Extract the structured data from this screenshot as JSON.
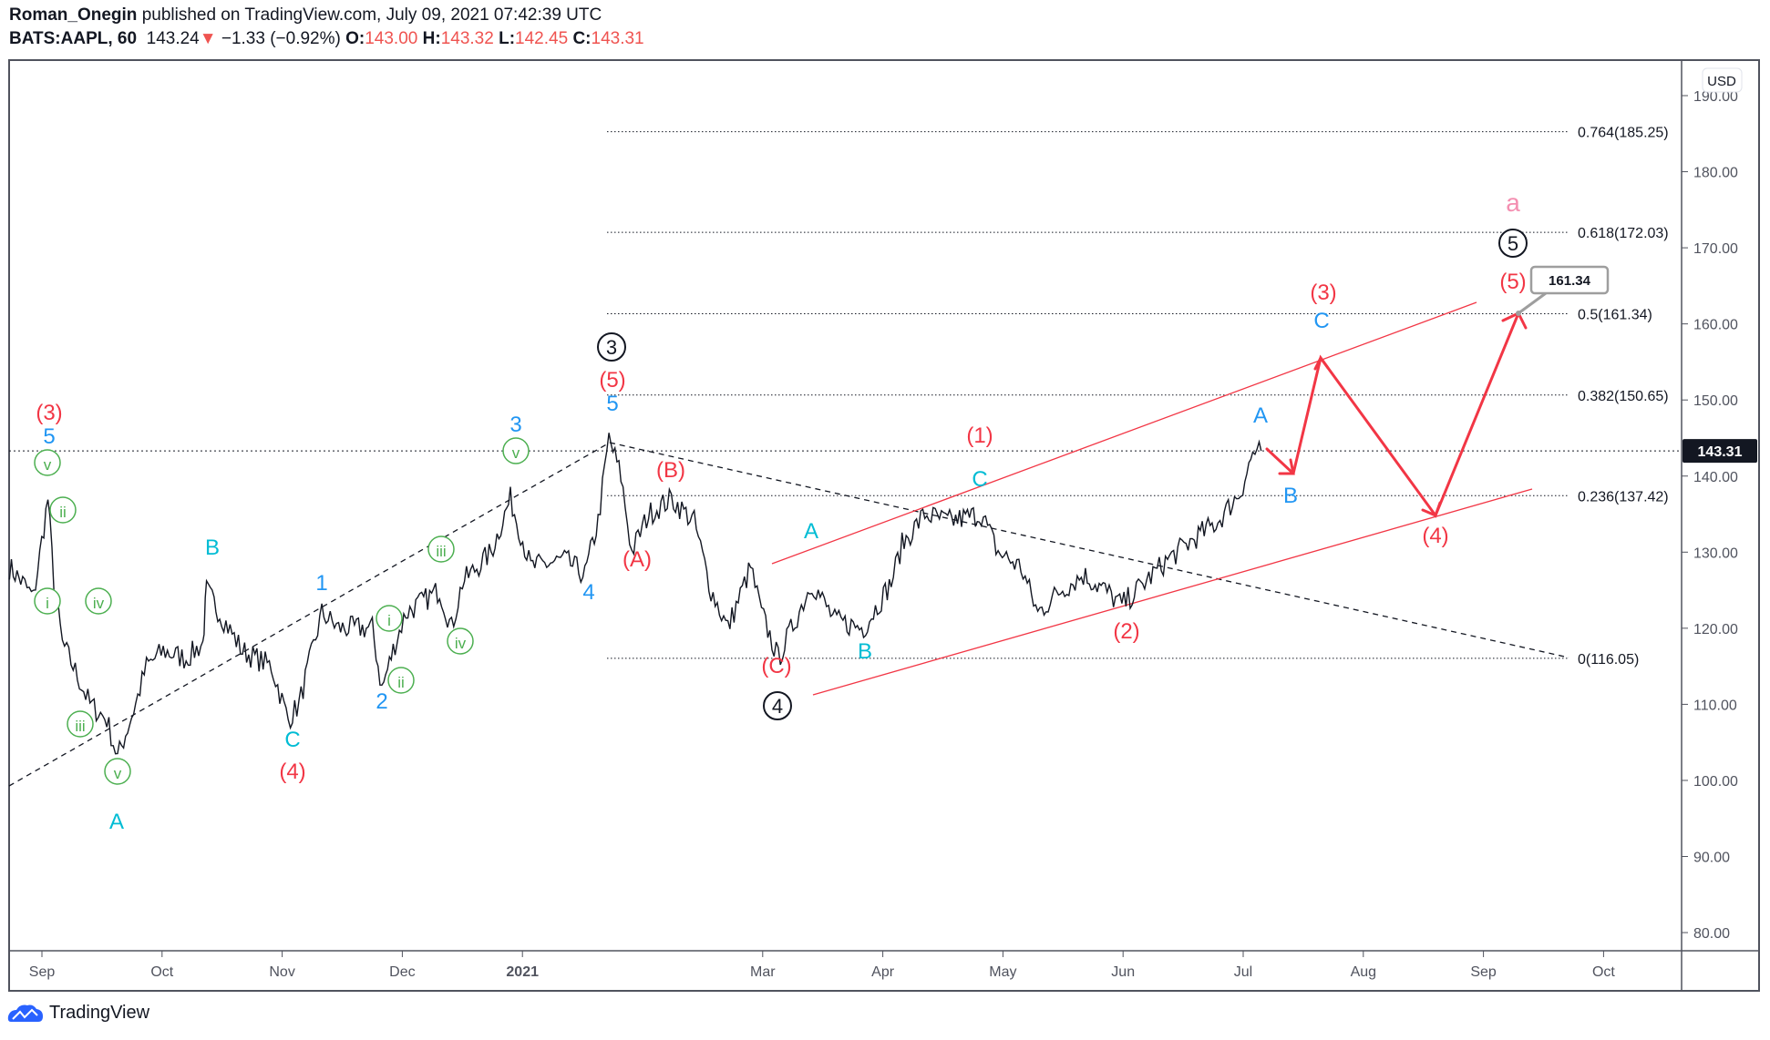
{
  "header": {
    "author": "Roman_Onegin",
    "published": "published on TradingView.com, July 09, 2021 07:42:39 UTC",
    "symbol": "BATS:AAPL, 60",
    "last": "143.24",
    "change": "−1.33 (−0.92%)",
    "o_label": "O:",
    "o": "143.00",
    "h_label": "H:",
    "h": "143.32",
    "l_label": "L:",
    "l": "142.45",
    "c_label": "C:",
    "c": "143.31"
  },
  "footer": {
    "brand": "TradingView"
  },
  "colors": {
    "red": "#f23645",
    "blue": "#2196f3",
    "cyan": "#00bcd4",
    "green": "#4caf50",
    "black": "#131722",
    "pink": "#f48fb1"
  },
  "chart_data": {
    "type": "line",
    "title": "BATS:AAPL, 60",
    "currency": "USD",
    "x_ticks": [
      "Sep",
      "Oct",
      "Nov",
      "Dec",
      "2021",
      "Mar",
      "Apr",
      "May",
      "Jun",
      "Jul",
      "Aug",
      "Sep",
      "Oct"
    ],
    "x_tick_months": [
      0,
      1,
      2,
      3,
      4,
      6,
      7,
      8,
      9,
      10,
      11,
      12,
      13
    ],
    "y_ticks": [
      "190.00",
      "180.00",
      "170.00",
      "160.00",
      "150.00",
      "140.00",
      "130.00",
      "120.00",
      "110.00",
      "100.00",
      "90.00",
      "80.00"
    ],
    "ylim": [
      80,
      190
    ],
    "last_price": 143.31,
    "last_price_label": "143.31",
    "price_path": [
      [
        -0.27,
        128
      ],
      [
        -0.16,
        126
      ],
      [
        -0.07,
        124
      ],
      [
        0.05,
        137
      ],
      [
        0.1,
        126
      ],
      [
        0.17,
        118
      ],
      [
        0.26,
        115
      ],
      [
        0.4,
        110
      ],
      [
        0.54,
        108
      ],
      [
        0.63,
        103
      ],
      [
        0.78,
        110
      ],
      [
        0.87,
        115
      ],
      [
        1.01,
        117
      ],
      [
        1.2,
        116
      ],
      [
        1.34,
        118
      ],
      [
        1.37,
        125
      ],
      [
        1.48,
        122
      ],
      [
        1.67,
        117
      ],
      [
        1.91,
        115
      ],
      [
        2.05,
        108
      ],
      [
        2.14,
        110
      ],
      [
        2.33,
        122
      ],
      [
        2.47,
        120
      ],
      [
        2.75,
        120
      ],
      [
        2.83,
        112
      ],
      [
        2.94,
        118
      ],
      [
        3.03,
        122
      ],
      [
        3.31,
        125
      ],
      [
        3.41,
        120
      ],
      [
        3.5,
        126
      ],
      [
        3.74,
        130
      ],
      [
        3.9,
        137
      ],
      [
        4.07,
        128
      ],
      [
        4.35,
        129
      ],
      [
        4.52,
        127
      ],
      [
        4.63,
        134
      ],
      [
        4.72,
        145
      ],
      [
        4.82,
        140
      ],
      [
        4.91,
        130
      ],
      [
        5.05,
        135
      ],
      [
        5.24,
        137
      ],
      [
        5.43,
        134
      ],
      [
        5.57,
        125
      ],
      [
        5.71,
        120
      ],
      [
        5.9,
        128
      ],
      [
        5.99,
        122
      ],
      [
        6.13,
        116
      ],
      [
        6.27,
        121
      ],
      [
        6.41,
        126
      ],
      [
        6.6,
        121
      ],
      [
        6.84,
        120
      ],
      [
        7.07,
        126
      ],
      [
        7.16,
        131
      ],
      [
        7.35,
        135
      ],
      [
        7.54,
        134
      ],
      [
        7.82,
        135
      ],
      [
        7.96,
        130
      ],
      [
        8.15,
        128
      ],
      [
        8.29,
        122
      ],
      [
        8.48,
        125
      ],
      [
        8.67,
        127
      ],
      [
        8.85,
        125
      ],
      [
        8.99,
        123
      ],
      [
        9.18,
        126
      ],
      [
        9.37,
        129
      ],
      [
        9.61,
        132
      ],
      [
        9.79,
        134
      ],
      [
        9.98,
        138
      ],
      [
        10.08,
        143
      ],
      [
        10.15,
        143.3
      ]
    ],
    "fib_levels": [
      {
        "ratio": 0.764,
        "price": 185.25,
        "label": "0.764(185.25)"
      },
      {
        "ratio": 0.618,
        "price": 172.03,
        "label": "0.618(172.03)"
      },
      {
        "ratio": 0.5,
        "price": 161.34,
        "label": "0.5(161.34)"
      },
      {
        "ratio": 0.382,
        "price": 150.65,
        "label": "0.382(150.65)"
      },
      {
        "ratio": 0.236,
        "price": 137.42,
        "label": "0.236(137.42)"
      },
      {
        "ratio": 0,
        "price": 116.05,
        "label": "0(116.05)"
      }
    ],
    "target_callout": "161.34",
    "annotations": [
      {
        "text": "(3)",
        "color": "red"
      },
      {
        "text": "(4)",
        "color": "red"
      },
      {
        "text": "(5)",
        "color": "red"
      },
      {
        "text": "(A)",
        "color": "red"
      },
      {
        "text": "(B)",
        "color": "red"
      },
      {
        "text": "(C)",
        "color": "red"
      },
      {
        "text": "(1)",
        "color": "red"
      },
      {
        "text": "(2)",
        "color": "red"
      },
      {
        "text": "(3)",
        "color": "red"
      },
      {
        "text": "(4)",
        "color": "red"
      },
      {
        "text": "(5)",
        "color": "red"
      },
      {
        "text": "5",
        "color": "blue"
      },
      {
        "text": "3",
        "color": "blue"
      },
      {
        "text": "1",
        "color": "blue"
      },
      {
        "text": "2",
        "color": "blue"
      },
      {
        "text": "4",
        "color": "blue"
      },
      {
        "text": "5",
        "color": "blue"
      },
      {
        "text": "B",
        "color": "cyan"
      },
      {
        "text": "C",
        "color": "cyan"
      },
      {
        "text": "A",
        "color": "cyan"
      },
      {
        "text": "A",
        "color": "cyan"
      },
      {
        "text": "B",
        "color": "cyan"
      },
      {
        "text": "C",
        "color": "cyan"
      },
      {
        "text": "A",
        "color": "blue"
      },
      {
        "text": "B",
        "color": "blue"
      },
      {
        "text": "C",
        "color": "blue"
      },
      {
        "text": "3",
        "color": "black",
        "circled": true
      },
      {
        "text": "4",
        "color": "black",
        "circled": true
      },
      {
        "text": "5",
        "color": "black",
        "circled": true
      },
      {
        "text": "v",
        "color": "green",
        "circled": true
      },
      {
        "text": "ii",
        "color": "green",
        "circled": true
      },
      {
        "text": "i",
        "color": "green",
        "circled": true
      },
      {
        "text": "iv",
        "color": "green",
        "circled": true
      },
      {
        "text": "iii",
        "color": "green",
        "circled": true
      },
      {
        "text": "v",
        "color": "green",
        "circled": true
      },
      {
        "text": "v",
        "color": "green",
        "circled": true
      },
      {
        "text": "iii",
        "color": "green",
        "circled": true
      },
      {
        "text": "i",
        "color": "green",
        "circled": true
      },
      {
        "text": "iv",
        "color": "green",
        "circled": true
      },
      {
        "text": "ii",
        "color": "green",
        "circled": true
      },
      {
        "text": "a",
        "color": "pink"
      }
    ]
  }
}
